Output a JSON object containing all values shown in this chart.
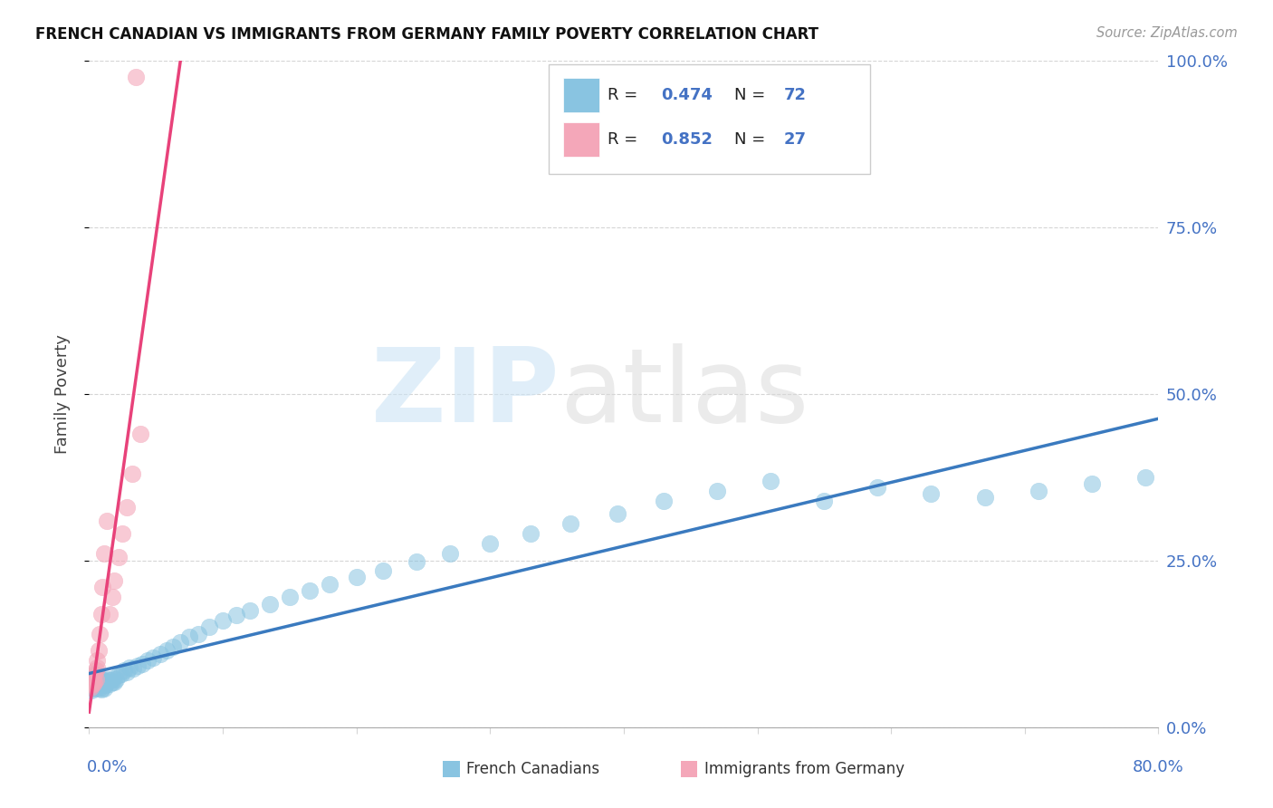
{
  "title": "FRENCH CANADIAN VS IMMIGRANTS FROM GERMANY FAMILY POVERTY CORRELATION CHART",
  "source": "Source: ZipAtlas.com",
  "ylabel": "Family Poverty",
  "ytick_labels": [
    "0.0%",
    "25.0%",
    "50.0%",
    "75.0%",
    "100.0%"
  ],
  "ytick_vals": [
    0.0,
    0.25,
    0.5,
    0.75,
    1.0
  ],
  "xlim": [
    0.0,
    0.8
  ],
  "ylim": [
    0.0,
    1.0
  ],
  "blue_R": 0.474,
  "blue_N": 72,
  "pink_R": 0.852,
  "pink_N": 27,
  "legend_label_blue": "French Canadians",
  "legend_label_pink": "Immigrants from Germany",
  "blue_color": "#89c4e1",
  "pink_color": "#f4a7b9",
  "blue_line_color": "#3a7abf",
  "pink_line_color": "#e8427a",
  "text_blue": "#4472c4",
  "grid_color": "#d5d5d5",
  "background": "#ffffff",
  "blue_x": [
    0.001,
    0.002,
    0.002,
    0.003,
    0.003,
    0.004,
    0.004,
    0.005,
    0.005,
    0.006,
    0.006,
    0.007,
    0.007,
    0.008,
    0.008,
    0.009,
    0.009,
    0.01,
    0.01,
    0.011,
    0.011,
    0.012,
    0.013,
    0.014,
    0.015,
    0.016,
    0.017,
    0.018,
    0.019,
    0.02,
    0.022,
    0.024,
    0.026,
    0.028,
    0.03,
    0.033,
    0.036,
    0.04,
    0.044,
    0.048,
    0.053,
    0.058,
    0.063,
    0.068,
    0.075,
    0.082,
    0.09,
    0.1,
    0.11,
    0.12,
    0.135,
    0.15,
    0.165,
    0.18,
    0.2,
    0.22,
    0.245,
    0.27,
    0.3,
    0.33,
    0.36,
    0.395,
    0.43,
    0.47,
    0.51,
    0.55,
    0.59,
    0.63,
    0.67,
    0.71,
    0.75,
    0.79
  ],
  "blue_y": [
    0.06,
    0.055,
    0.07,
    0.058,
    0.075,
    0.06,
    0.08,
    0.065,
    0.078,
    0.06,
    0.072,
    0.058,
    0.068,
    0.062,
    0.073,
    0.057,
    0.067,
    0.06,
    0.072,
    0.058,
    0.07,
    0.063,
    0.068,
    0.072,
    0.065,
    0.07,
    0.068,
    0.073,
    0.068,
    0.072,
    0.078,
    0.08,
    0.085,
    0.082,
    0.09,
    0.088,
    0.092,
    0.095,
    0.1,
    0.105,
    0.11,
    0.115,
    0.12,
    0.128,
    0.135,
    0.14,
    0.15,
    0.16,
    0.168,
    0.175,
    0.185,
    0.195,
    0.205,
    0.215,
    0.225,
    0.235,
    0.248,
    0.26,
    0.275,
    0.29,
    0.305,
    0.32,
    0.34,
    0.355,
    0.37,
    0.34,
    0.36,
    0.35,
    0.345,
    0.355,
    0.365,
    0.375
  ],
  "pink_x": [
    0.001,
    0.001,
    0.002,
    0.002,
    0.003,
    0.003,
    0.004,
    0.004,
    0.005,
    0.005,
    0.006,
    0.006,
    0.007,
    0.008,
    0.009,
    0.01,
    0.011,
    0.013,
    0.015,
    0.017,
    0.019,
    0.022,
    0.025,
    0.028,
    0.032,
    0.038,
    0.035
  ],
  "pink_y": [
    0.06,
    0.065,
    0.063,
    0.07,
    0.065,
    0.073,
    0.068,
    0.078,
    0.072,
    0.085,
    0.09,
    0.1,
    0.115,
    0.14,
    0.17,
    0.21,
    0.26,
    0.31,
    0.17,
    0.195,
    0.22,
    0.255,
    0.29,
    0.33,
    0.38,
    0.44,
    0.975
  ]
}
